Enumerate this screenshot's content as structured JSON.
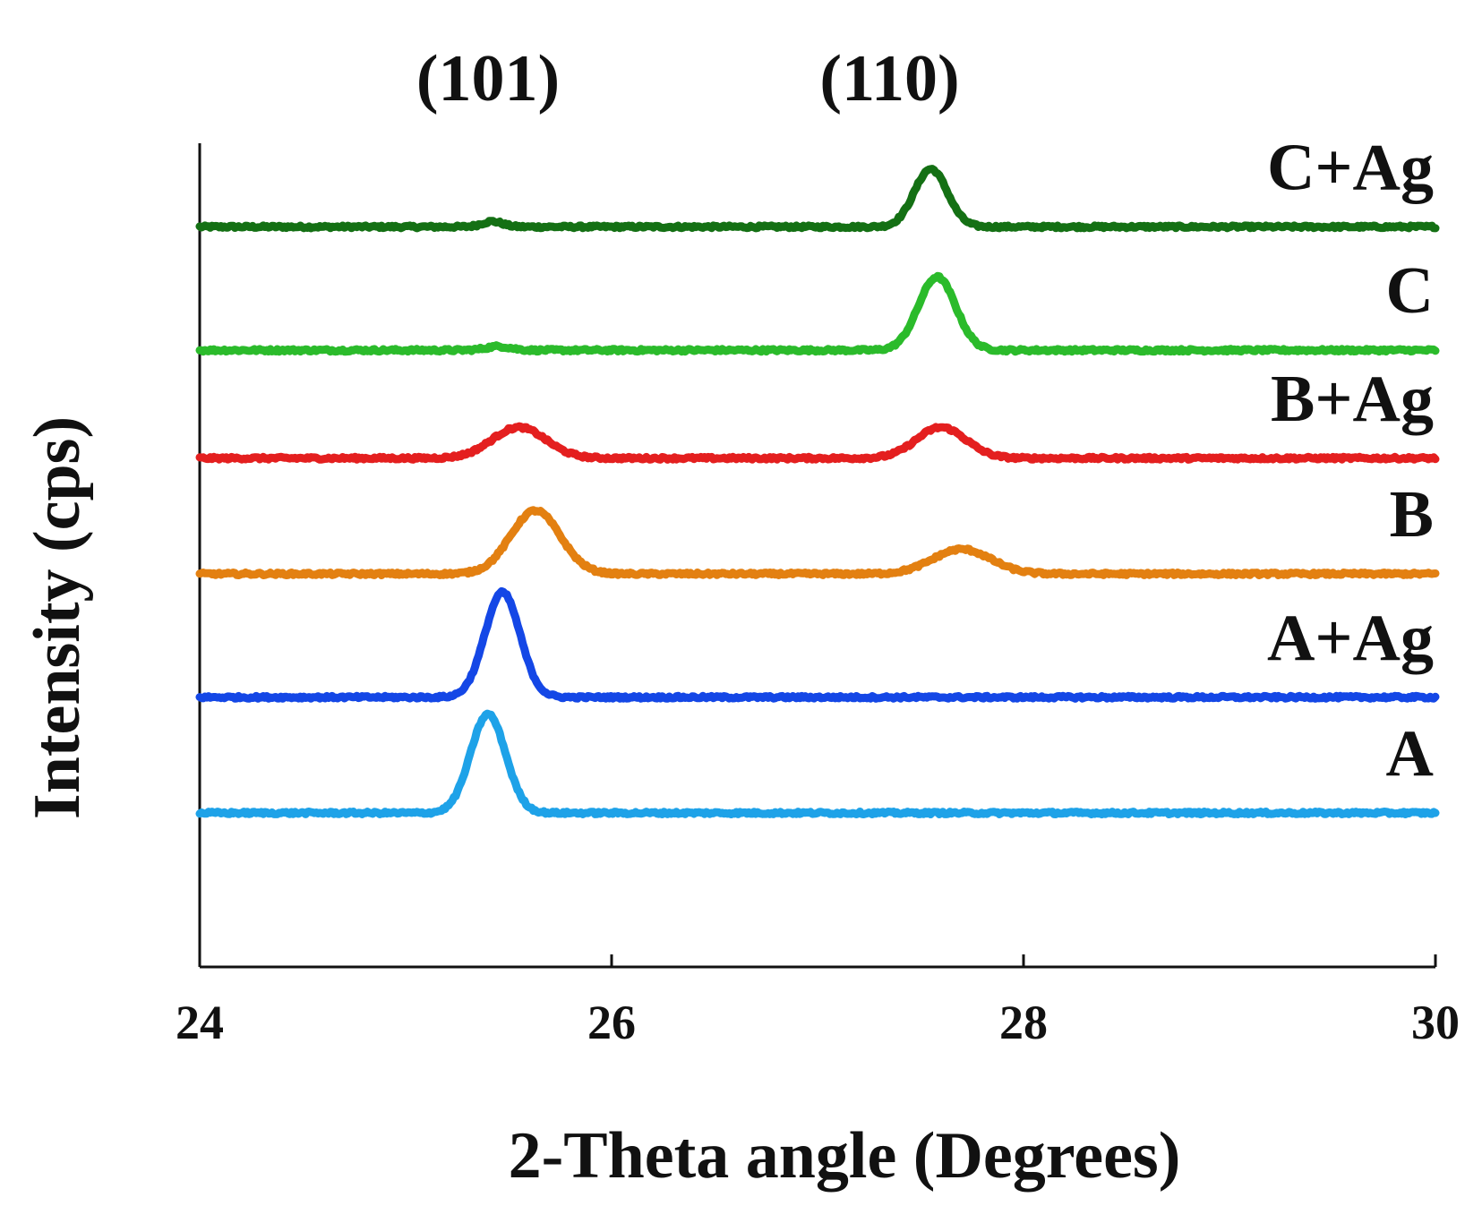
{
  "chart_data": {
    "type": "line",
    "title": "",
    "xlabel": "2-Theta angle (Degrees)",
    "ylabel": "Intensity (cps)",
    "xlim": [
      24,
      30
    ],
    "xticks": [
      24,
      26,
      28,
      30
    ],
    "xtick_labels": [
      "24",
      "26",
      "28",
      "30"
    ],
    "y_ticks_shown": false,
    "grid": false,
    "legend": "inline labels at right end of each trace",
    "y_units": "arbitrary, traces vertically offset (stacked)",
    "peak_annotations": [
      {
        "label": "(101)",
        "x": 25.4
      },
      {
        "label": "(110)",
        "x": 27.35
      }
    ],
    "series": [
      {
        "name": "C+Ag",
        "color": "#147014",
        "baseline": 6.8,
        "peaks": [
          {
            "center": 25.42,
            "height": 0.07,
            "width": 0.05
          },
          {
            "center": 27.55,
            "height": 0.75,
            "width": 0.08
          }
        ]
      },
      {
        "name": "C",
        "color": "#2bbb2b",
        "baseline": 5.2,
        "peaks": [
          {
            "center": 25.45,
            "height": 0.05,
            "width": 0.06
          },
          {
            "center": 27.58,
            "height": 0.95,
            "width": 0.09
          }
        ]
      },
      {
        "name": "B+Ag",
        "color": "#e41f1f",
        "baseline": 3.8,
        "peaks": [
          {
            "center": 25.55,
            "height": 0.4,
            "width": 0.13
          },
          {
            "center": 27.6,
            "height": 0.4,
            "width": 0.12
          }
        ]
      },
      {
        "name": "B",
        "color": "#e38011",
        "baseline": 2.3,
        "peaks": [
          {
            "center": 25.63,
            "height": 0.82,
            "width": 0.12
          },
          {
            "center": 27.7,
            "height": 0.32,
            "width": 0.14
          }
        ]
      },
      {
        "name": "A+Ag",
        "color": "#1447e6",
        "baseline": 0.7,
        "peaks": [
          {
            "center": 25.47,
            "height": 1.36,
            "width": 0.085
          }
        ]
      },
      {
        "name": "A",
        "color": "#1ea2e8",
        "baseline": -0.8,
        "peaks": [
          {
            "center": 25.4,
            "height": 1.28,
            "width": 0.085
          }
        ]
      }
    ]
  }
}
